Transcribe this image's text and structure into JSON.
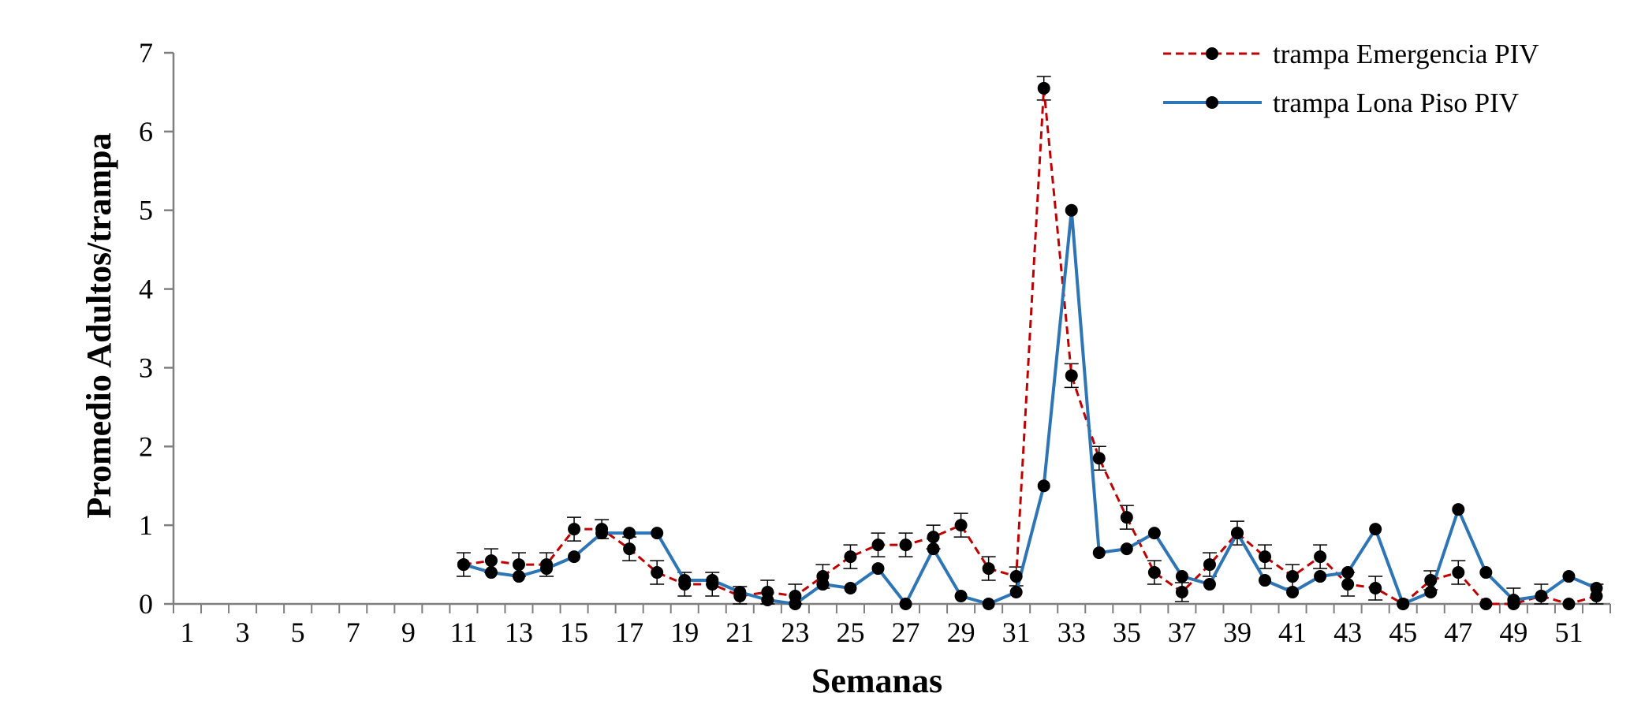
{
  "chart_data": {
    "type": "line",
    "title": "",
    "xlabel": "Semanas",
    "ylabel": "Promedio Adultos/trampa",
    "ylim": [
      0,
      7
    ],
    "yticks": [
      0,
      1,
      2,
      3,
      4,
      5,
      6,
      7
    ],
    "xlim": [
      1,
      52
    ],
    "xtick_labels": [
      1,
      3,
      5,
      7,
      9,
      11,
      13,
      15,
      17,
      19,
      21,
      23,
      25,
      27,
      29,
      31,
      33,
      35,
      37,
      39,
      41,
      43,
      45,
      47,
      49,
      51
    ],
    "x": [
      11,
      12,
      13,
      14,
      15,
      16,
      17,
      18,
      19,
      20,
      21,
      22,
      23,
      24,
      25,
      26,
      27,
      28,
      29,
      30,
      31,
      32,
      33,
      34,
      35,
      36,
      37,
      38,
      39,
      40,
      41,
      42,
      43,
      44,
      45,
      46,
      47,
      48,
      49,
      50,
      51,
      52
    ],
    "grid": false,
    "legend_position": "top-right",
    "error_bars": true,
    "series": [
      {
        "name": "trampa Emergencia PIV",
        "color": "#c00000",
        "line_style": "dashed",
        "marker": "circle",
        "values": [
          0.5,
          0.55,
          0.5,
          0.5,
          0.95,
          0.95,
          0.7,
          0.4,
          0.25,
          0.25,
          0.1,
          0.15,
          0.1,
          0.35,
          0.6,
          0.75,
          0.75,
          0.85,
          1.0,
          0.45,
          0.35,
          6.55,
          2.9,
          1.85,
          1.1,
          0.4,
          0.15,
          0.5,
          0.9,
          0.6,
          0.35,
          0.6,
          0.25,
          0.2,
          0.0,
          0.3,
          0.4,
          0.0,
          0.0,
          0.1,
          0.0,
          0.1
        ],
        "errors": [
          0.15,
          0.15,
          0.15,
          0.15,
          0.15,
          0.12,
          0.15,
          0.15,
          0.15,
          0.15,
          0.12,
          0.15,
          0.15,
          0.15,
          0.15,
          0.15,
          0.15,
          0.15,
          0.15,
          0.15,
          0.12,
          0.15,
          0.15,
          0.15,
          0.15,
          0.15,
          0.12,
          0.15,
          0.15,
          0.15,
          0.15,
          0.15,
          0.15,
          0.15,
          0.0,
          0.12,
          0.15,
          0.0,
          0.2,
          0.15,
          0.0,
          0.15
        ]
      },
      {
        "name": "trampa Lona Piso PIV",
        "color": "#2e75b6",
        "line_style": "solid",
        "marker": "circle",
        "values": [
          0.5,
          0.4,
          0.35,
          0.45,
          0.6,
          0.9,
          0.9,
          0.9,
          0.3,
          0.3,
          0.15,
          0.05,
          0.0,
          0.25,
          0.2,
          0.45,
          0.0,
          0.7,
          0.1,
          0.0,
          0.15,
          1.5,
          5.0,
          0.65,
          0.7,
          0.9,
          0.35,
          0.25,
          0.9,
          0.3,
          0.15,
          0.35,
          0.4,
          0.95,
          0.0,
          0.15,
          1.2,
          0.4,
          0.05,
          0.1,
          0.35,
          0.2
        ]
      }
    ]
  }
}
